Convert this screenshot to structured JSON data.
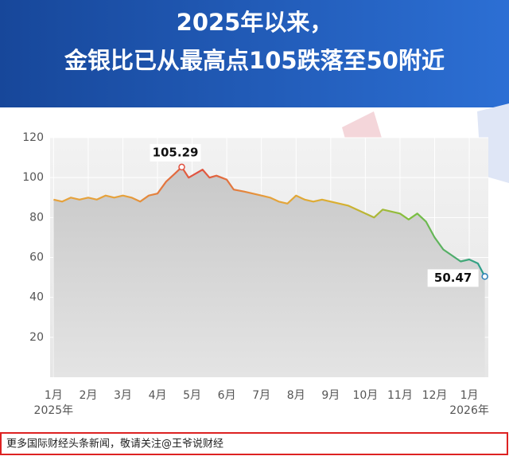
{
  "chart_data": {
    "type": "line",
    "title": [
      "2025年以来，",
      "金银比已从最高点105跌落至50附近"
    ],
    "x": [
      0,
      0.25,
      0.5,
      0.75,
      1,
      1.25,
      1.5,
      1.75,
      2,
      2.25,
      2.5,
      2.75,
      3,
      3.25,
      3.5,
      3.7,
      3.9,
      4.1,
      4.3,
      4.5,
      4.7,
      5,
      5.2,
      5.5,
      5.75,
      6,
      6.25,
      6.5,
      6.75,
      7,
      7.25,
      7.5,
      7.75,
      8,
      8.25,
      8.5,
      8.75,
      9,
      9.25,
      9.5,
      9.75,
      10,
      10.25,
      10.5,
      10.75,
      11,
      11.25,
      11.5,
      11.75,
      12,
      12.25,
      12.45
    ],
    "series": [
      {
        "values": [
          89,
          88,
          90,
          89,
          90,
          89,
          91,
          90,
          91,
          90,
          88,
          91,
          92,
          98,
          102,
          105.29,
          100,
          102,
          104,
          100,
          101,
          99,
          94,
          93,
          92,
          91,
          90,
          88,
          87,
          91,
          89,
          88,
          89,
          88,
          87,
          86,
          84,
          82,
          80,
          84,
          83,
          82,
          79,
          82,
          78,
          70,
          64,
          61,
          58,
          59,
          57,
          50.47
        ],
        "colors": [
          "#e6a23c",
          "#e6a23c",
          "#e05040",
          "#e6a23c",
          "#d9b030",
          "#7cc040",
          "#2a9d8f"
        ]
      }
    ],
    "annotated_points": [
      15,
      51
    ],
    "xlim": [
      -0.1,
      12.55
    ],
    "xticks": [
      {
        "value": 0,
        "label": "1月"
      },
      {
        "value": 1,
        "label": "2月"
      },
      {
        "value": 2,
        "label": "3月"
      },
      {
        "value": 3,
        "label": "4月"
      },
      {
        "value": 4,
        "label": "5月"
      },
      {
        "value": 5,
        "label": "6月"
      },
      {
        "value": 6,
        "label": "7月"
      },
      {
        "value": 7,
        "label": "8月"
      },
      {
        "value": 8,
        "label": "9月"
      },
      {
        "value": 9,
        "label": "10月"
      },
      {
        "value": 10,
        "label": "11月"
      },
      {
        "value": 11,
        "label": "12月"
      },
      {
        "value": 12,
        "label": "1月"
      }
    ],
    "year_labels": [
      "2025年",
      "2026年"
    ],
    "ylim": [
      0,
      120
    ],
    "yticks": [
      20,
      40,
      60,
      80,
      100,
      120
    ],
    "grid": true
  },
  "footer": "更多国际财经头条新闻，敬请关注@王爷说财经"
}
